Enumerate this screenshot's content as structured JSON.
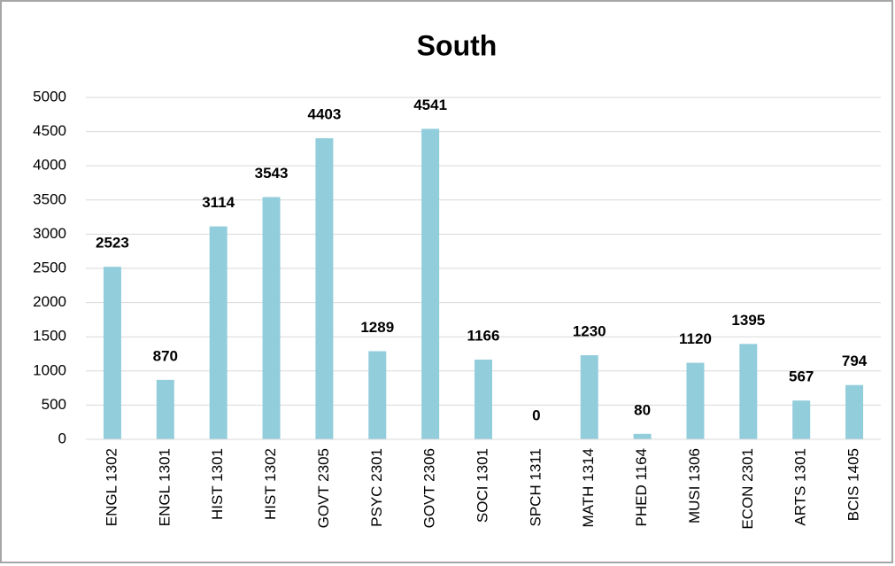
{
  "chart_data": {
    "type": "bar",
    "title": "South",
    "categories": [
      "ENGL 1302",
      "ENGL 1301",
      "HIST 1301",
      "HIST 1302",
      "GOVT 2305",
      "PSYC 2301",
      "GOVT 2306",
      "SOCI 1301",
      "SPCH 1311",
      "MATH 1314",
      "PHED 1164",
      "MUSI 1306",
      "ECON 2301",
      "ARTS 1301",
      "BCIS 1405"
    ],
    "values": [
      2523,
      870,
      3114,
      3543,
      4403,
      1289,
      4541,
      1166,
      0,
      1230,
      80,
      1120,
      1395,
      567,
      794
    ],
    "color": "#92cddc",
    "ylim": [
      0,
      5000
    ],
    "yticks": [
      0,
      500,
      1000,
      1500,
      2000,
      2500,
      3000,
      3500,
      4000,
      4500,
      5000
    ],
    "grid": true
  }
}
